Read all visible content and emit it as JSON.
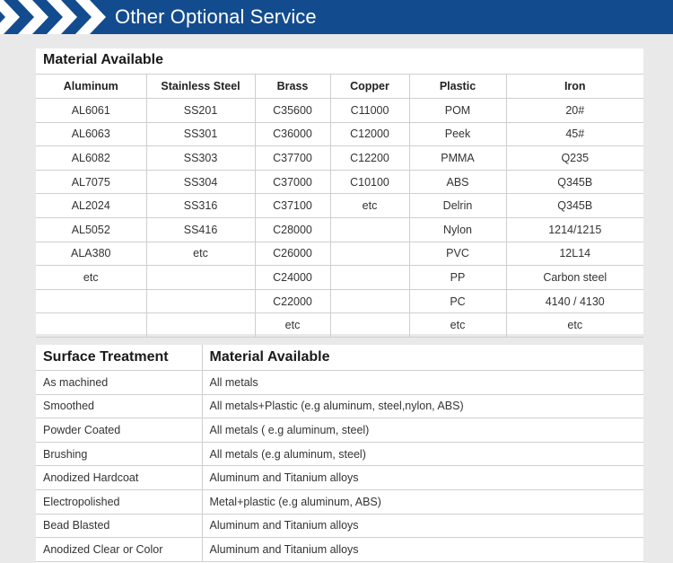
{
  "banner": {
    "title": "Other Optional Service",
    "colors": {
      "background": "#134c8e",
      "chevrons": "#ffffff"
    }
  },
  "material_table": {
    "title": "Material Available",
    "columns": [
      "Aluminum",
      "Stainless Steel",
      "Brass",
      "Copper",
      "Plastic",
      "Iron"
    ],
    "rows": [
      [
        "AL6061",
        "SS201",
        "C35600",
        "C11000",
        "POM",
        "20#"
      ],
      [
        "AL6063",
        "SS301",
        "C36000",
        "C12000",
        "Peek",
        "45#"
      ],
      [
        "AL6082",
        "SS303",
        "C37700",
        "C12200",
        "PMMA",
        "Q235"
      ],
      [
        "AL7075",
        "SS304",
        "C37000",
        "C10100",
        "ABS",
        "Q345B"
      ],
      [
        "AL2024",
        "SS316",
        "C37100",
        "etc",
        "Delrin",
        "Q345B"
      ],
      [
        "AL5052",
        "SS416",
        "C28000",
        "",
        "Nylon",
        "1214/1215"
      ],
      [
        "ALA380",
        "etc",
        "C26000",
        "",
        "PVC",
        "12L14"
      ],
      [
        "etc",
        "",
        "C24000",
        "",
        "PP",
        "Carbon steel"
      ],
      [
        "",
        "",
        "C22000",
        "",
        "PC",
        "4140 / 4130"
      ],
      [
        "",
        "",
        "etc",
        "",
        "etc",
        "etc"
      ]
    ]
  },
  "surface_table": {
    "columns": [
      "Surface Treatment",
      "Material Available"
    ],
    "rows": [
      [
        "As machined",
        "All metals"
      ],
      [
        "Smoothed",
        "All metals+Plastic (e.g aluminum, steel,nylon, ABS)"
      ],
      [
        "Powder Coated",
        "All metals ( e.g aluminum, steel)"
      ],
      [
        "Brushing",
        "All metals (e.g aluminum, steel)"
      ],
      [
        "Anodized Hardcoat",
        "Aluminum and Titanium alloys"
      ],
      [
        "Electropolished",
        "Metal+plastic (e.g aluminum, ABS)"
      ],
      [
        "Bead Blasted",
        "Aluminum and Titanium alloys"
      ],
      [
        "Anodized Clear or Color",
        "Aluminum and Titanium alloys"
      ]
    ]
  }
}
